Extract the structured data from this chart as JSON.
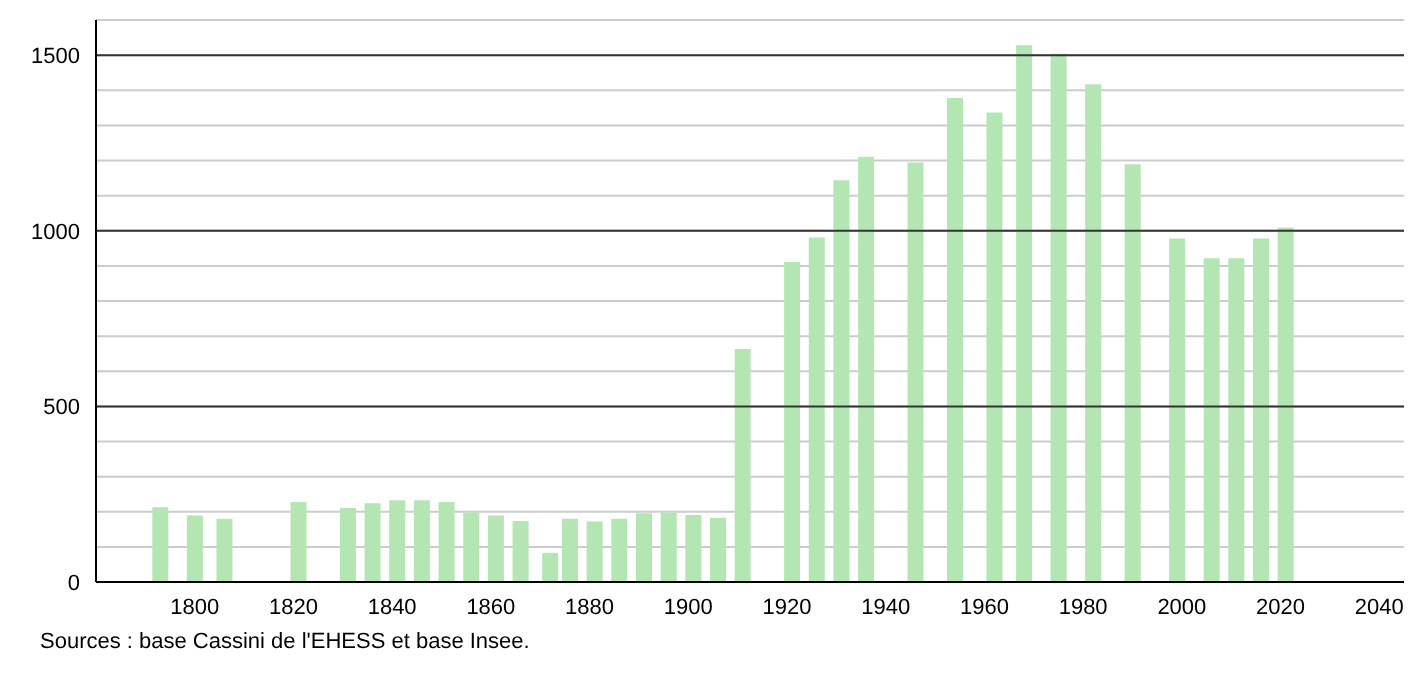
{
  "chart_data": {
    "type": "bar",
    "x": [
      1793,
      1800,
      1806,
      1821,
      1831,
      1836,
      1841,
      1846,
      1851,
      1856,
      1861,
      1866,
      1872,
      1876,
      1881,
      1886,
      1891,
      1896,
      1901,
      1906,
      1911,
      1921,
      1926,
      1931,
      1936,
      1946,
      1954,
      1962,
      1968,
      1975,
      1982,
      1990,
      1999,
      2006,
      2011,
      2016,
      2021
    ],
    "values": [
      213,
      189,
      180,
      228,
      211,
      224,
      233,
      233,
      228,
      198,
      189,
      174,
      83,
      180,
      172,
      180,
      196,
      198,
      191,
      183,
      663,
      911,
      981,
      1144,
      1211,
      1194,
      1378,
      1337,
      1528,
      1504,
      1417,
      1189,
      978,
      922,
      922,
      978,
      1009
    ],
    "color": "#b3e6b3",
    "xlim": [
      1780,
      2045
    ],
    "xticks": [
      1800,
      1820,
      1840,
      1860,
      1880,
      1900,
      1920,
      1940,
      1960,
      1980,
      2000,
      2020,
      2040
    ],
    "ylim": [
      0,
      1600
    ],
    "yticks": [
      0,
      {
        "value": 100,
        "label": null
      },
      {
        "value": 200,
        "label": null
      },
      {
        "value": 300,
        "label": null
      },
      {
        "value": 400,
        "label": null
      },
      500,
      {
        "value": 600,
        "label": null
      },
      {
        "value": 700,
        "label": null
      },
      {
        "value": 800,
        "label": null
      },
      {
        "value": 900,
        "label": null
      },
      1000,
      {
        "value": 1100,
        "label": null
      },
      {
        "value": 1200,
        "label": null
      },
      {
        "value": 1300,
        "label": null
      },
      {
        "value": 1400,
        "label": null
      },
      1500,
      {
        "value": 1600,
        "label": null
      }
    ],
    "grid": "y",
    "annotations": [
      "Sources : base Cassini de l'EHESS et base Insee."
    ]
  }
}
